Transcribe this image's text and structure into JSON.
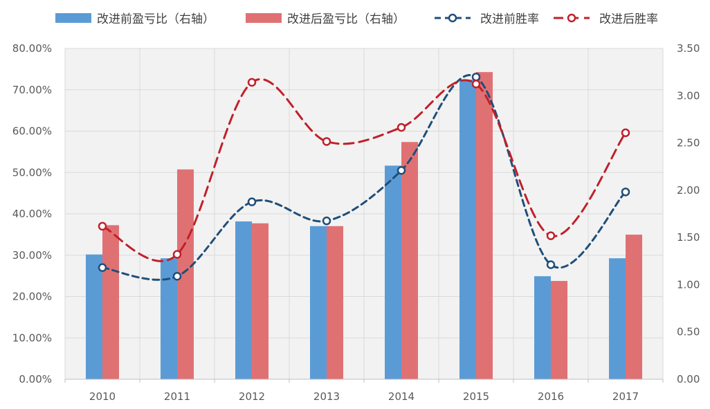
{
  "chart_data": {
    "type": "bar",
    "categories": [
      "2010",
      "2011",
      "2012",
      "2013",
      "2014",
      "2015",
      "2016",
      "2017"
    ],
    "series": [
      {
        "name": "改进前盈亏比（右轴）",
        "type": "bar",
        "axis": "right",
        "color": "#5B9BD5",
        "values": [
          1.32,
          1.28,
          1.67,
          1.62,
          2.26,
          3.17,
          1.09,
          1.28
        ]
      },
      {
        "name": "改进后盈亏比（右轴）",
        "type": "bar",
        "axis": "right",
        "color": "#E07173",
        "values": [
          1.63,
          2.22,
          1.65,
          1.62,
          2.51,
          3.25,
          1.04,
          1.53
        ]
      },
      {
        "name": "改进前胜率",
        "type": "line",
        "axis": "left",
        "color": "#1F4E79",
        "line_style": "dashed",
        "marker": "circle",
        "values": [
          0.27,
          0.249,
          0.429,
          0.383,
          0.505,
          0.731,
          0.277,
          0.453
        ]
      },
      {
        "name": "改进后胜率",
        "type": "line",
        "axis": "left",
        "color": "#C0202A",
        "line_style": "dashed",
        "marker": "circle",
        "values": [
          0.37,
          0.302,
          0.718,
          0.575,
          0.609,
          0.714,
          0.347,
          0.596
        ]
      }
    ],
    "left_axis": {
      "min": 0,
      "max": 0.8,
      "ticks": [
        "0.00%",
        "10.00%",
        "20.00%",
        "30.00%",
        "40.00%",
        "50.00%",
        "60.00%",
        "70.00%",
        "80.00%"
      ]
    },
    "right_axis": {
      "min": 0,
      "max": 3.5,
      "ticks": [
        "0.00",
        "0.50",
        "1.00",
        "1.50",
        "2.00",
        "2.50",
        "3.00",
        "3.50"
      ]
    },
    "legend_position": "top",
    "grid": true,
    "title": "",
    "xlabel": "",
    "ylabel": ""
  }
}
